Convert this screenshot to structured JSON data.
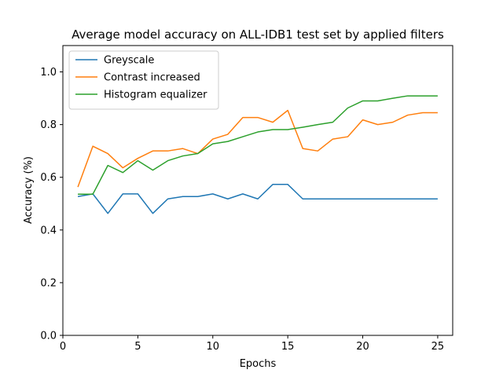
{
  "chart_data": {
    "type": "line",
    "title": "Average model accuracy on ALL-IDB1 test set by applied filters",
    "xlabel": "Epochs",
    "ylabel": "Accuracy (%)",
    "xlim": [
      0,
      26
    ],
    "ylim": [
      0,
      1.1
    ],
    "xticks": [
      0,
      5,
      10,
      15,
      20,
      25
    ],
    "yticks": [
      0.0,
      0.2,
      0.4,
      0.6,
      0.8,
      1.0
    ],
    "xtick_labels": [
      "0",
      "5",
      "10",
      "15",
      "20",
      "25"
    ],
    "ytick_labels": [
      "0.0",
      "0.2",
      "0.4",
      "0.6",
      "0.8",
      "1.0"
    ],
    "grid": false,
    "legend_position": "top-left",
    "x": [
      1,
      2,
      3,
      4,
      5,
      6,
      7,
      8,
      9,
      10,
      11,
      12,
      13,
      14,
      15,
      16,
      17,
      18,
      19,
      20,
      21,
      22,
      23,
      24,
      25
    ],
    "series": [
      {
        "name": "Greyscale",
        "color": "#1f77b4",
        "values": [
          0.527,
          0.537,
          0.463,
          0.537,
          0.537,
          0.463,
          0.518,
          0.527,
          0.527,
          0.537,
          0.518,
          0.537,
          0.518,
          0.573,
          0.573,
          0.518,
          0.518,
          0.518,
          0.518,
          0.518,
          0.518,
          0.518,
          0.518,
          0.518,
          0.518
        ]
      },
      {
        "name": "Contrast increased",
        "color": "#ff7f0e",
        "values": [
          0.563,
          0.718,
          0.69,
          0.636,
          0.672,
          0.7,
          0.7,
          0.709,
          0.69,
          0.745,
          0.763,
          0.827,
          0.827,
          0.809,
          0.854,
          0.709,
          0.7,
          0.745,
          0.754,
          0.818,
          0.8,
          0.809,
          0.836,
          0.845,
          0.845
        ]
      },
      {
        "name": "Histogram equalizer",
        "color": "#2ca02c",
        "values": [
          0.536,
          0.536,
          0.645,
          0.618,
          0.663,
          0.627,
          0.663,
          0.681,
          0.69,
          0.727,
          0.736,
          0.754,
          0.772,
          0.781,
          0.781,
          0.79,
          0.8,
          0.809,
          0.863,
          0.89,
          0.89,
          0.9,
          0.909,
          0.909,
          0.909
        ]
      }
    ]
  }
}
